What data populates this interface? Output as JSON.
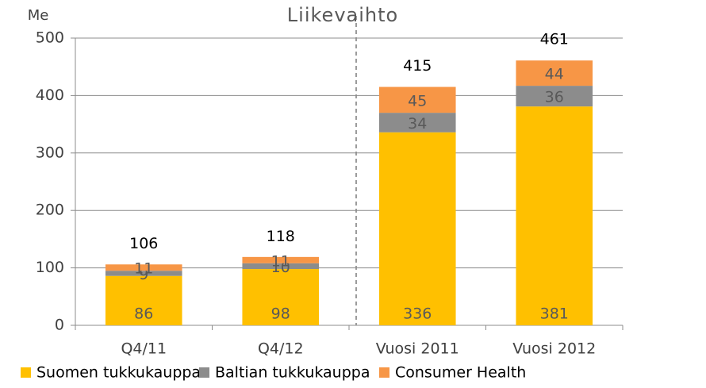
{
  "chart_data": {
    "type": "stacked-bar",
    "title": "Liikevaihto",
    "y_label": "Me",
    "categories": [
      "Q4/11",
      "Q4/12",
      "Vuosi 2011",
      "Vuosi 2012"
    ],
    "series": [
      {
        "name": "Suomen tukkukauppa",
        "color": "#ffc000",
        "values": [
          86,
          98,
          336,
          381
        ]
      },
      {
        "name": "Baltian tukkukauppa",
        "color": "#8c8c8c",
        "values": [
          9,
          10,
          34,
          36
        ]
      },
      {
        "name": "Consumer Health",
        "color": "#f79646",
        "values": [
          11,
          11,
          45,
          44
        ]
      }
    ],
    "totals": [
      106,
      118,
      415,
      461
    ],
    "ylim": [
      0,
      500
    ],
    "yticks": [
      0,
      100,
      200,
      300,
      400,
      500
    ],
    "grid": true,
    "legend": "bottom"
  }
}
